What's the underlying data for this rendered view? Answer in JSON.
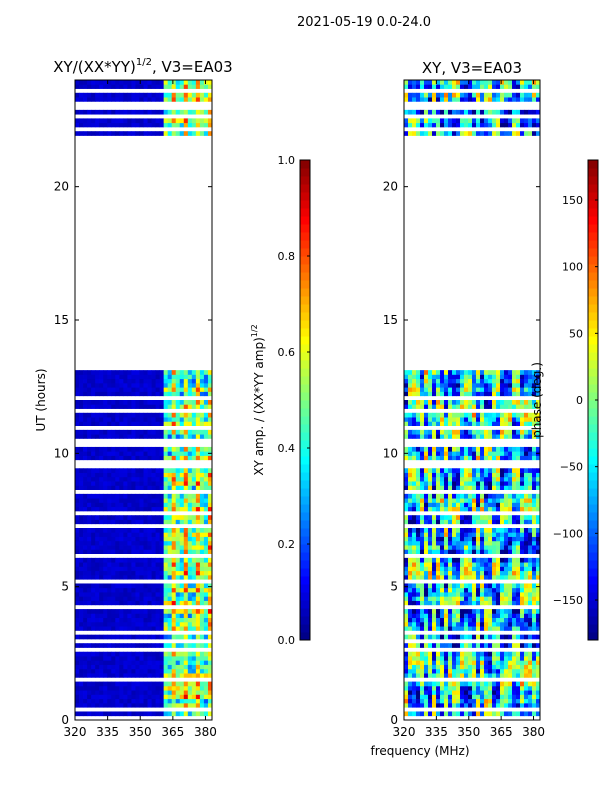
{
  "figure_title": "2021-05-19 0.0-24.0",
  "shared_xlabel": "frequency (MHz)",
  "colors": {
    "cmap": "jet",
    "missing": "#ffffff",
    "base_amp": "#00008f"
  },
  "chart_data": [
    {
      "type": "heatmap",
      "panel": "left",
      "title_main": "XY/(XX*YY)",
      "title_exp": "1/2",
      "title_suffix": ", V3=EA03",
      "ylabel": "UT (hours)",
      "xlim": [
        320,
        383
      ],
      "ylim": [
        0,
        24
      ],
      "xticks": [
        320,
        335,
        350,
        365,
        380
      ],
      "yticks": [
        0,
        5,
        10,
        15,
        20
      ],
      "data_gap_hours": [
        13.1,
        22.0
      ],
      "signal_band_mhz": [
        360,
        383
      ],
      "value_range": [
        0.0,
        1.0
      ],
      "colorbar": {
        "label_main": "XY amp. / (XX*YY amp)",
        "label_exp": "1/2",
        "min": 0.0,
        "max": 1.0,
        "ticks": [
          "0.0",
          "0.2",
          "0.4",
          "0.6",
          "0.8",
          "1.0"
        ],
        "tick_values": [
          0.0,
          0.2,
          0.4,
          0.6,
          0.8,
          1.0
        ]
      }
    },
    {
      "type": "heatmap",
      "panel": "right",
      "title": "XY, V3=EA03",
      "xlim": [
        320,
        383
      ],
      "ylim": [
        0,
        24
      ],
      "xticks": [
        320,
        335,
        350,
        365,
        380
      ],
      "yticks": [
        0,
        5,
        10,
        15,
        20
      ],
      "data_gap_hours": [
        13.1,
        22.0
      ],
      "value_range": [
        -180,
        180
      ],
      "colorbar": {
        "label": "phase (deg.)",
        "min": -180,
        "max": 180,
        "ticks": [
          "−150",
          "−100",
          "−50",
          "0",
          "50",
          "100",
          "150"
        ],
        "tick_values": [
          -150,
          -100,
          -50,
          0,
          50,
          100,
          150
        ]
      }
    }
  ]
}
